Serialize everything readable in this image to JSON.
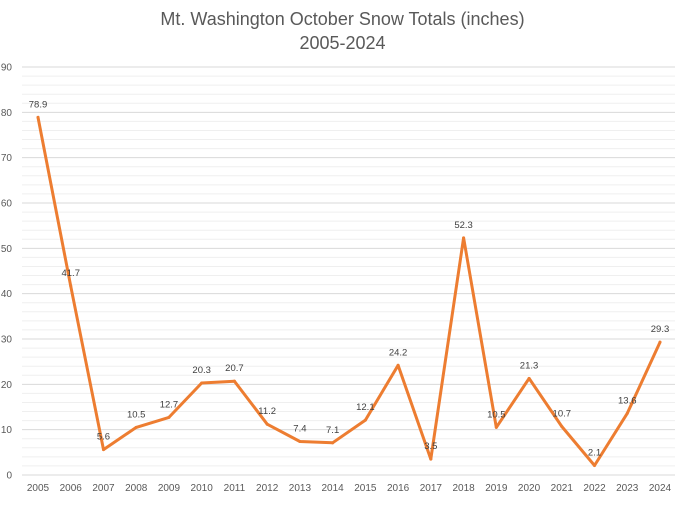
{
  "chart_data": {
    "type": "line",
    "title_lines": [
      "Mt. Washington October Snow Totals (inches)",
      "2005-2024"
    ],
    "xlabel": "",
    "ylabel": "",
    "ylim": [
      0,
      90
    ],
    "y_ticks": [
      0,
      10,
      20,
      30,
      40,
      50,
      60,
      70,
      80,
      90
    ],
    "grid": true,
    "legend": "none",
    "line_color": "#ed7d31",
    "categories": [
      "2005",
      "2006",
      "2007",
      "2008",
      "2009",
      "2010",
      "2011",
      "2012",
      "2013",
      "2014",
      "2015",
      "2016",
      "2017",
      "2018",
      "2019",
      "2020",
      "2021",
      "2022",
      "2023",
      "2024"
    ],
    "series": [
      {
        "values": [
          78.9,
          41.7,
          5.6,
          10.5,
          12.7,
          20.3,
          20.7,
          11.2,
          7.4,
          7.1,
          12.1,
          24.2,
          3.5,
          52.3,
          10.5,
          21.3,
          10.7,
          2.1,
          13.6,
          29.3
        ],
        "labels": [
          "78.9",
          "41.7",
          "5.6",
          "10.5",
          "12.7",
          "20.3",
          "20.7",
          "11.2",
          "7.4",
          "7.1",
          "12.1",
          "24.2",
          "3.5",
          "52.3",
          "10.5",
          "21.3",
          "10.7",
          "2.1",
          "13.6",
          "29.3"
        ]
      }
    ]
  }
}
